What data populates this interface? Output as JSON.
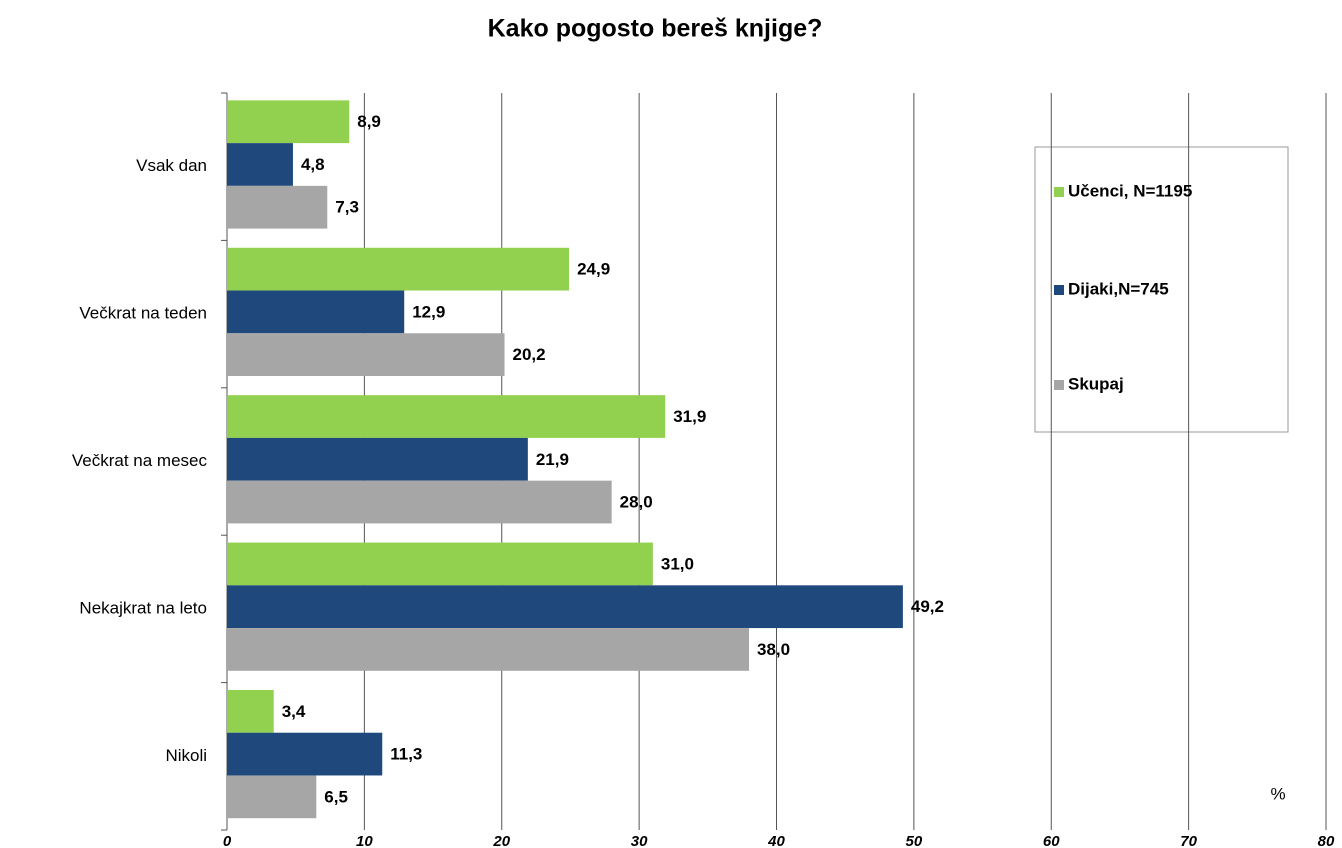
{
  "chart_data": {
    "type": "hbar",
    "title": "Kako pogosto bereš knjige?",
    "categories": [
      "Vsak dan",
      "Večkrat na teden",
      "Večkrat  na mesec",
      "Nekajkrat na leto",
      "Nikoli"
    ],
    "series": [
      {
        "name": "Učenci, N=1195",
        "color": "#92d050",
        "values": [
          8.9,
          24.9,
          31.9,
          31.0,
          3.4
        ],
        "value_labels": [
          "8,9",
          "24,9",
          "31,9",
          "31,0",
          "3,4"
        ]
      },
      {
        "name": "Dijaki,N=745",
        "color": "#1f497d",
        "values": [
          4.8,
          12.9,
          21.9,
          49.2,
          11.3
        ],
        "value_labels": [
          "4,8",
          "12,9",
          "21,9",
          "49,2",
          "11,3"
        ]
      },
      {
        "name": "Skupaj",
        "color": "#a6a6a6",
        "values": [
          7.3,
          20.2,
          28.0,
          38.0,
          6.5
        ],
        "value_labels": [
          "7,3",
          "20,2",
          "28,0",
          "38,0",
          "6,5"
        ]
      }
    ],
    "x_label": "%",
    "xlim": [
      0,
      80
    ],
    "xticks": [
      0,
      10,
      20,
      30,
      40,
      50,
      60,
      70,
      80
    ],
    "grid": true,
    "legend": "upper right"
  }
}
